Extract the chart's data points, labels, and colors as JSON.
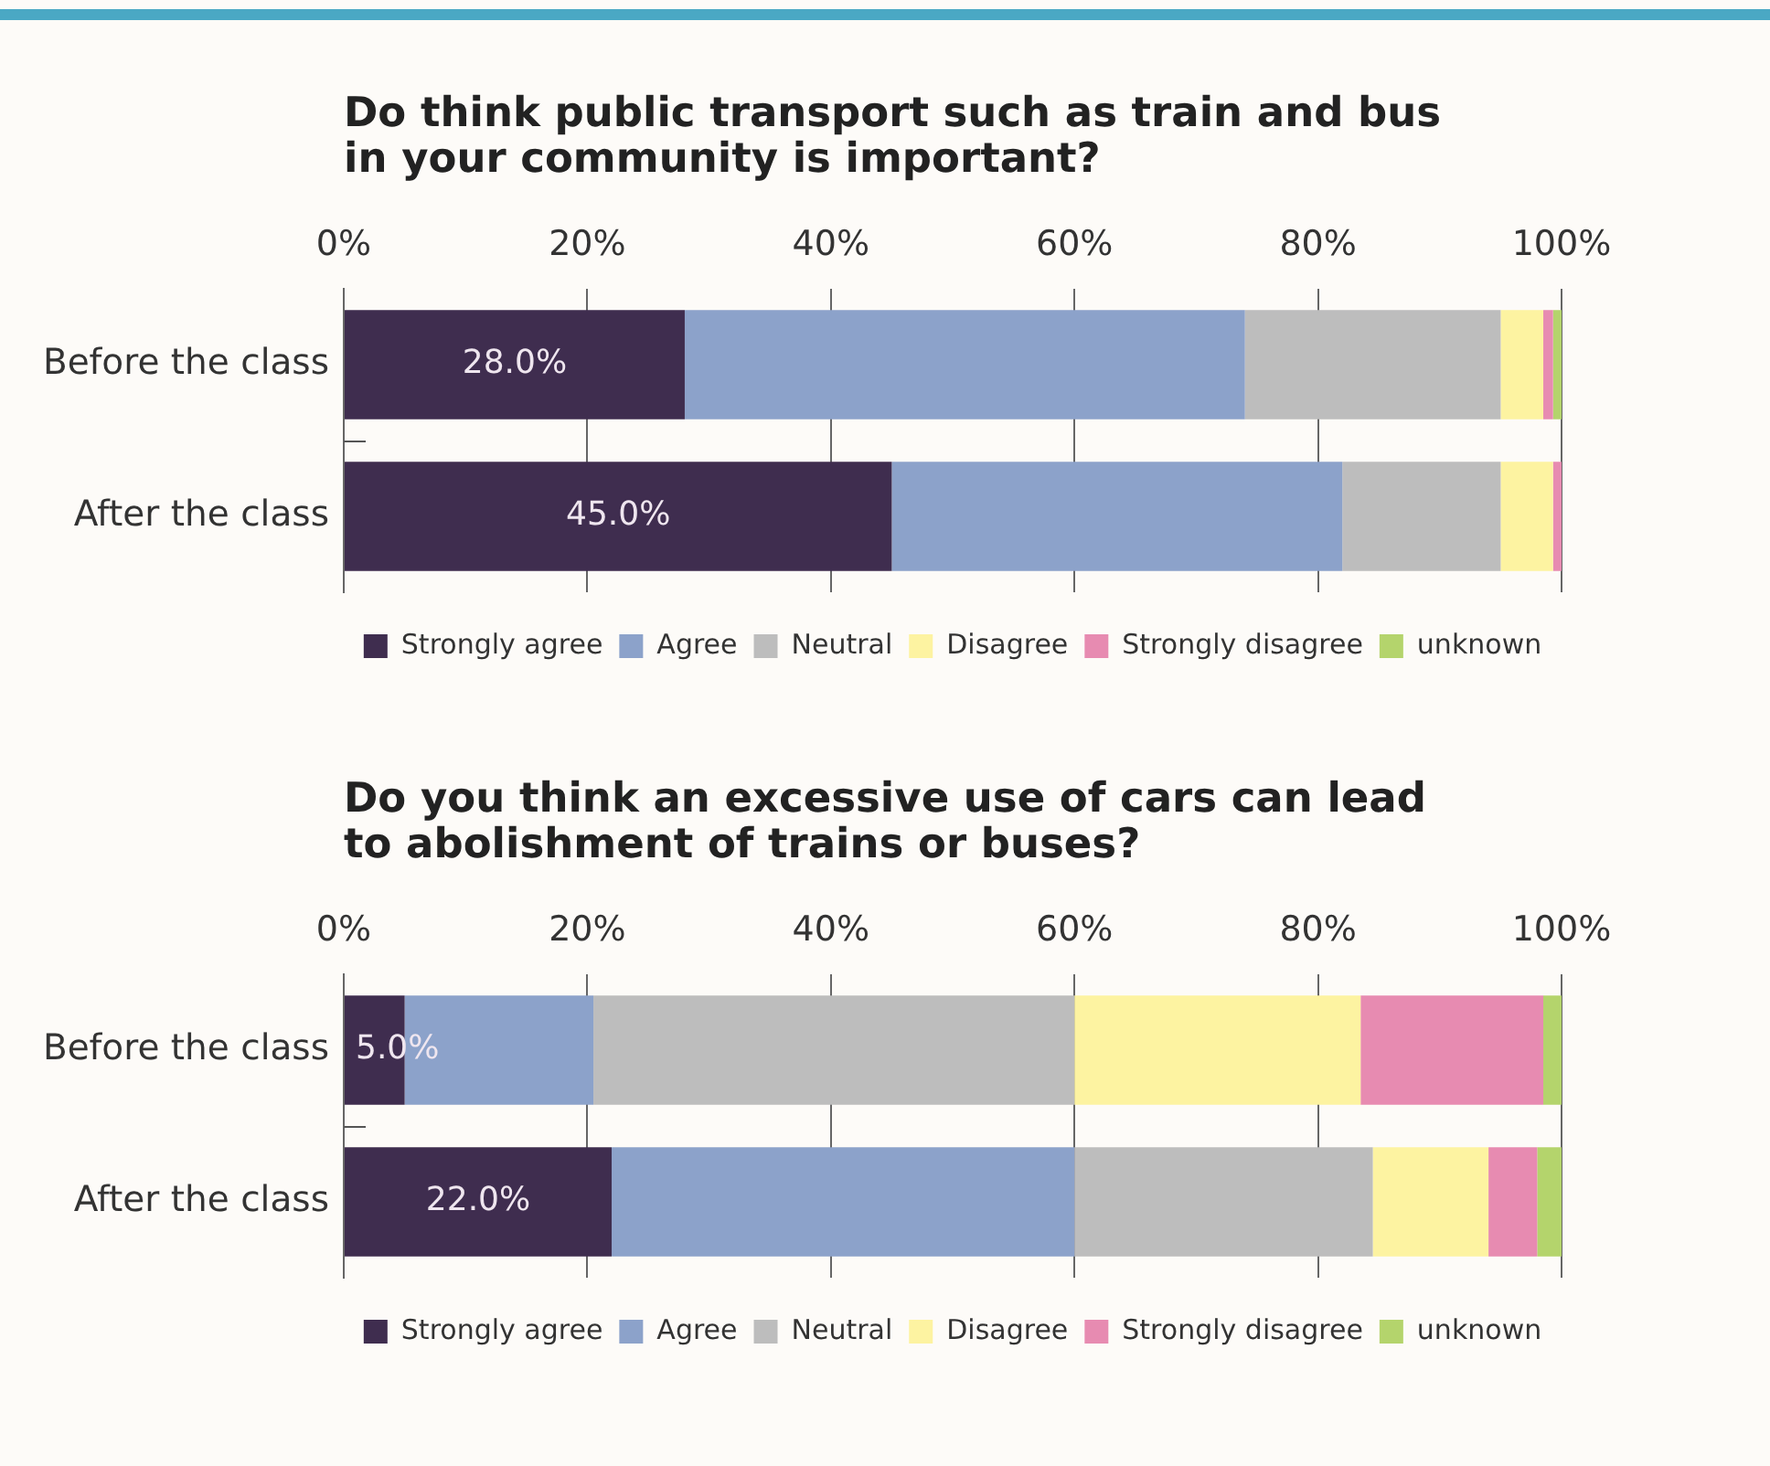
{
  "chart_data": [
    {
      "type": "bar",
      "orientation": "horizontal",
      "stacked": true,
      "title": "Do think public transport such as train and bus in your community is important?",
      "categories": [
        "Before the class",
        "After the class"
      ],
      "series": [
        {
          "name": "Strongly agree",
          "color": "#3f2d4f",
          "values": [
            28.0,
            45.0
          ],
          "value_labels": [
            "28.0%",
            "45.0%"
          ]
        },
        {
          "name": "Agree",
          "color": "#8ca2ca",
          "values": [
            46.0,
            37.0
          ]
        },
        {
          "name": "Neutral",
          "color": "#bdbdbd",
          "values": [
            21.0,
            13.0
          ]
        },
        {
          "name": "Disagree",
          "color": "#fdf3a1",
          "values": [
            3.5,
            4.3
          ]
        },
        {
          "name": "Strongly disagree",
          "color": "#e78bb1",
          "values": [
            0.8,
            0.7
          ]
        },
        {
          "name": "unknown",
          "color": "#b4d46c",
          "values": [
            0.7,
            0
          ]
        }
      ],
      "xlim": [
        0,
        100
      ],
      "xticks": [
        {
          "value": 0,
          "label": "0%"
        },
        {
          "value": 20,
          "label": "20%"
        },
        {
          "value": 40,
          "label": "40%"
        },
        {
          "value": 60,
          "label": "60%"
        },
        {
          "value": 80,
          "label": "80%"
        },
        {
          "value": 100,
          "label": "100%"
        }
      ],
      "grid": "x",
      "legend": "bottom"
    },
    {
      "type": "bar",
      "orientation": "horizontal",
      "stacked": true,
      "title": "Do you think an excessive use of cars can lead to abolishment of trains or buses?",
      "categories": [
        "Before the class",
        "After the class"
      ],
      "series": [
        {
          "name": "Strongly agree",
          "color": "#3f2d4f",
          "values": [
            5.0,
            22.0
          ],
          "value_labels": [
            "5.0%",
            "22.0%"
          ]
        },
        {
          "name": "Agree",
          "color": "#8ca2ca",
          "values": [
            15.5,
            38.0
          ]
        },
        {
          "name": "Neutral",
          "color": "#bdbdbd",
          "values": [
            39.5,
            24.5
          ]
        },
        {
          "name": "Disagree",
          "color": "#fdf3a1",
          "values": [
            23.5,
            9.5
          ]
        },
        {
          "name": "Strongly disagree",
          "color": "#e78bb1",
          "values": [
            15.0,
            4.0
          ]
        },
        {
          "name": "unknown",
          "color": "#b4d46c",
          "values": [
            1.5,
            2.0
          ]
        }
      ],
      "xlim": [
        0,
        100
      ],
      "xticks": [
        {
          "value": 0,
          "label": "0%"
        },
        {
          "value": 20,
          "label": "20%"
        },
        {
          "value": 40,
          "label": "40%"
        },
        {
          "value": 60,
          "label": "60%"
        },
        {
          "value": 80,
          "label": "80%"
        },
        {
          "value": 100,
          "label": "100%"
        }
      ],
      "grid": "x",
      "legend": "bottom"
    }
  ]
}
